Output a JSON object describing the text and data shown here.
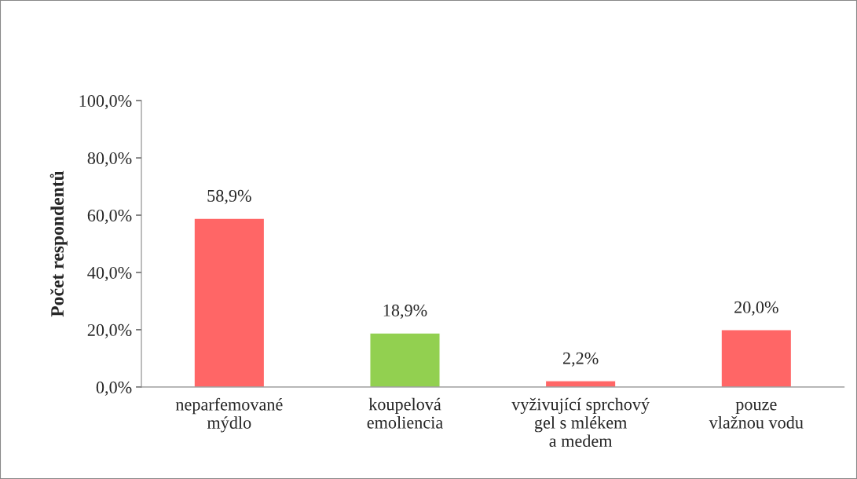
{
  "chart_data": {
    "type": "bar",
    "ylabel": "Počet respondentů",
    "categories": [
      "neparfemované\nmýdlo",
      "koupelová\nemoliencia",
      "vyživující sprchový\ngel s mlékem\na medem",
      "pouze\nvlažnou vodu"
    ],
    "values": [
      58.9,
      18.9,
      2.2,
      20.0
    ],
    "colors": [
      "#ff6666",
      "#92d050",
      "#ff6666",
      "#ff6666"
    ],
    "value_labels": [
      "58,9%",
      "18,9%",
      "2,2%",
      "20,0%"
    ],
    "ylim": [
      0,
      100
    ],
    "yticks": [
      {
        "value": 0,
        "label": "0,0%"
      },
      {
        "value": 20,
        "label": "20,0%"
      },
      {
        "value": 40,
        "label": "40,0%"
      },
      {
        "value": 60,
        "label": "60,0%"
      },
      {
        "value": 80,
        "label": "80,0%"
      },
      {
        "value": 100,
        "label": "100,0%"
      }
    ],
    "grid": false,
    "legend": false
  }
}
